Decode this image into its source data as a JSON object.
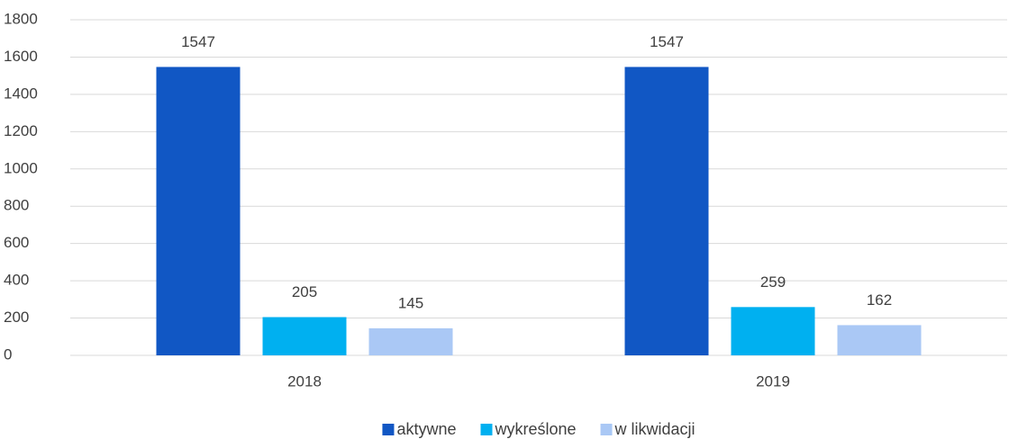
{
  "chart_data": {
    "type": "bar",
    "categories": [
      "2018",
      "2019"
    ],
    "series": [
      {
        "name": "aktywne",
        "color": "#1157c4",
        "values": [
          1547,
          1547
        ]
      },
      {
        "name": "wykreślone",
        "color": "#00b0f0",
        "values": [
          205,
          259
        ]
      },
      {
        "name": "w likwidacji",
        "color": "#aac8f5",
        "values": [
          145,
          162
        ]
      }
    ],
    "ylim": [
      0,
      1800
    ],
    "yticks": [
      0,
      200,
      400,
      600,
      800,
      1000,
      1200,
      1400,
      1600,
      1800
    ],
    "grid": true,
    "legend": "bottom",
    "data_labels": true
  }
}
